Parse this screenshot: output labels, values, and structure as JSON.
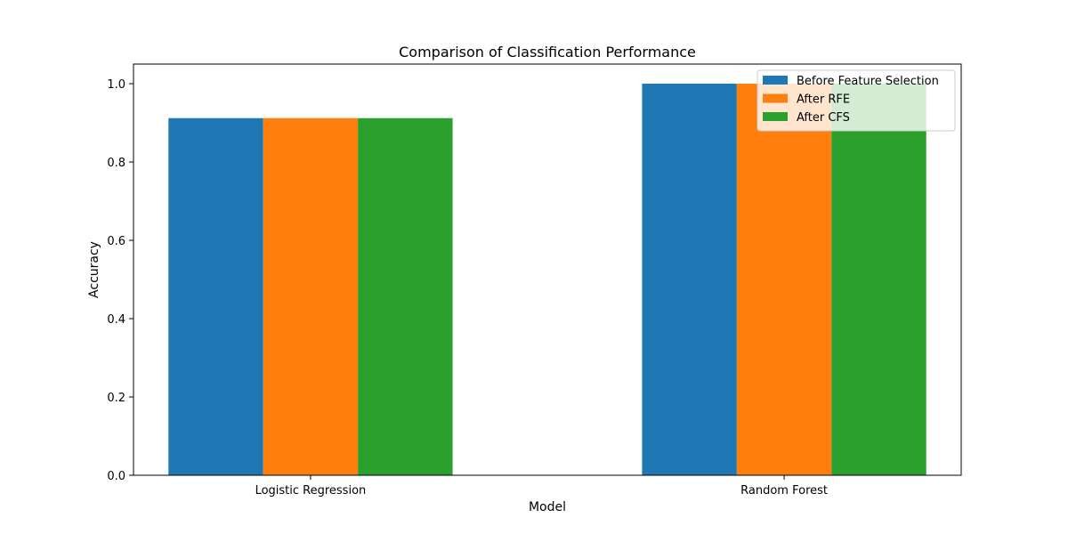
{
  "chart_data": {
    "type": "bar",
    "title": "Comparison of Classification Performance",
    "xlabel": "Model",
    "ylabel": "Accuracy",
    "categories": [
      "Logistic Regression",
      "Random Forest"
    ],
    "series": [
      {
        "name": "Before Feature Selection",
        "color": "#1f77b4",
        "values": [
          0.912,
          1.0
        ]
      },
      {
        "name": "After RFE",
        "color": "#ff7f0e",
        "values": [
          0.912,
          1.0
        ]
      },
      {
        "name": "After CFS",
        "color": "#2ca02c",
        "values": [
          0.912,
          1.0
        ]
      }
    ],
    "ylim": [
      0,
      1.05
    ],
    "yticks": [
      0.0,
      0.2,
      0.4,
      0.6,
      0.8,
      1.0
    ],
    "ytick_labels": [
      "0.0",
      "0.2",
      "0.4",
      "0.6",
      "0.8",
      "1.0"
    ],
    "grid": false,
    "legend_position": "top-right"
  }
}
